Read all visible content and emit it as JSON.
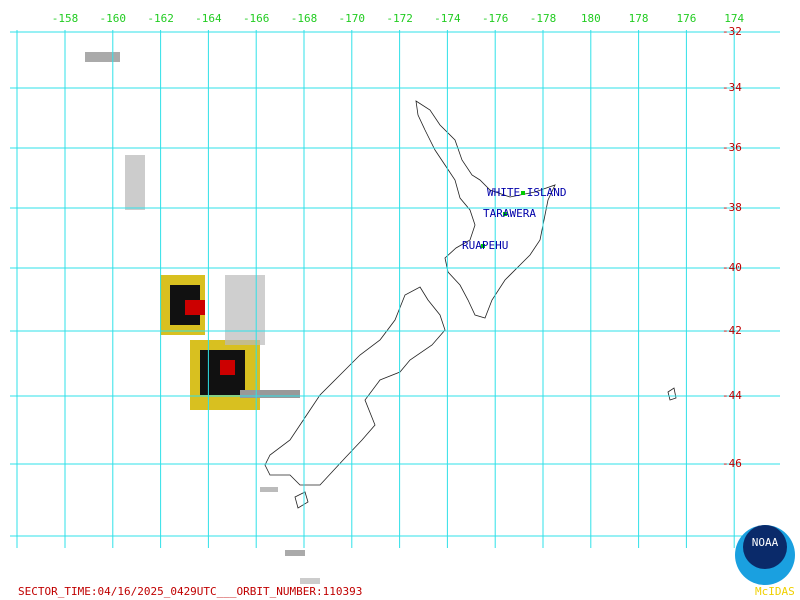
{
  "lon_labels": [
    "-158",
    "-160",
    "-162",
    "-164",
    "-166",
    "-168",
    "-170",
    "-172",
    "-174",
    "-176",
    "-178",
    "180",
    "178",
    "176",
    "174"
  ],
  "lat_labels": [
    "-32",
    "-34",
    "-36",
    "-38",
    "-40",
    "-42",
    "-44",
    "-46"
  ],
  "volcanoes": [
    {
      "label": "WHITE ISLAND"
    },
    {
      "label": "TARAWERA"
    },
    {
      "label": "RUAPEHU"
    }
  ],
  "footer": "SECTOR_TIME:04/16/2025_0429UTC___ORBIT_NUMBER:110393",
  "logo": {
    "name": "NOAA",
    "caption": "McIDAS"
  }
}
